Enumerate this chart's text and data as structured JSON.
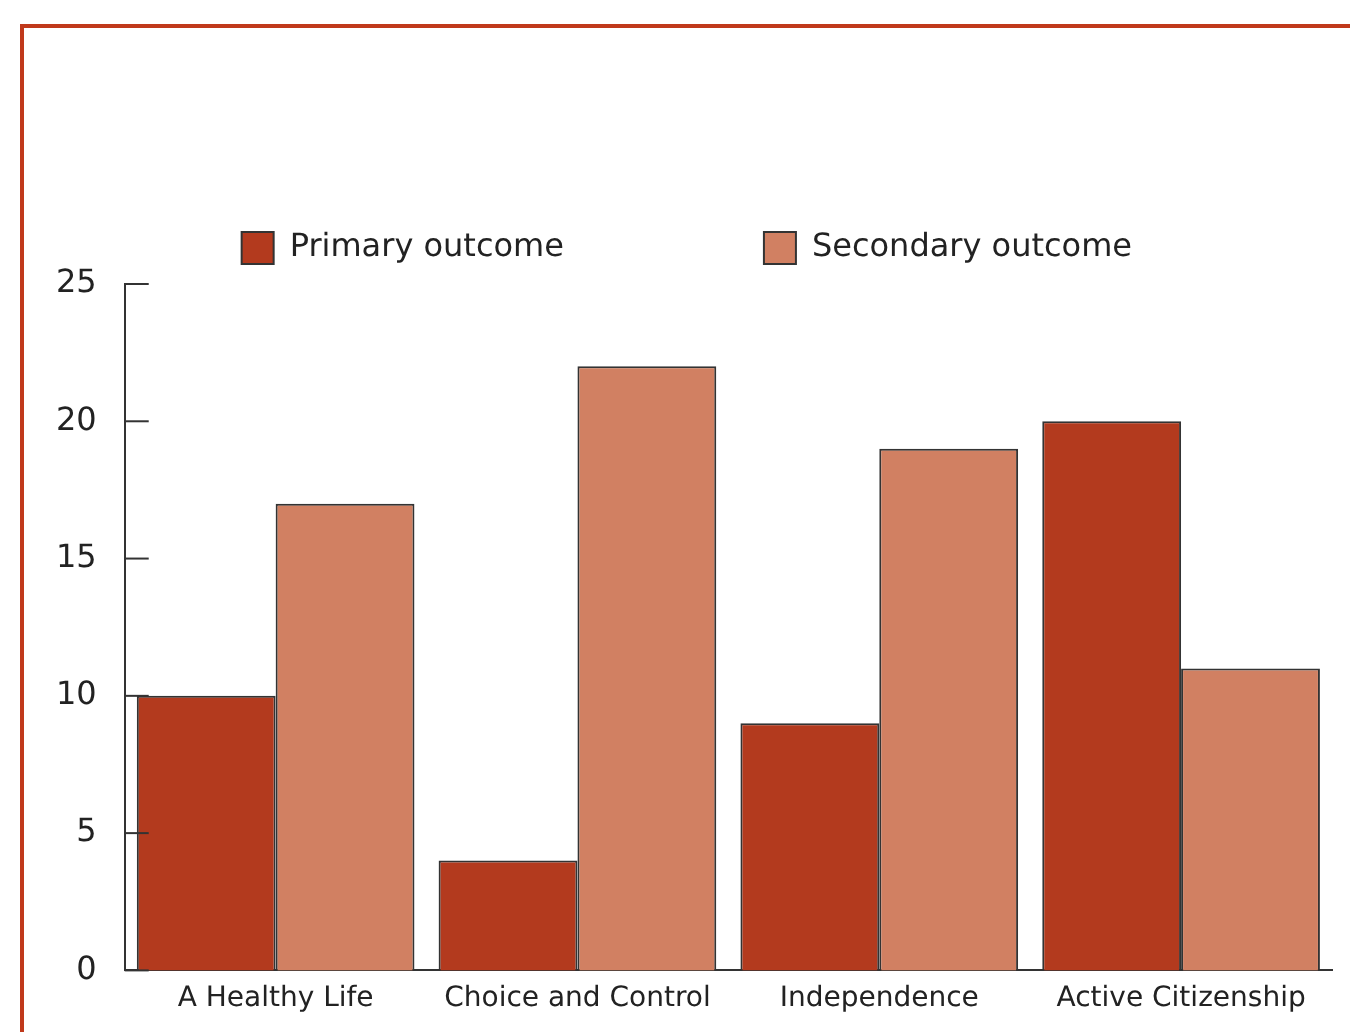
{
  "chart_data": {
    "type": "bar",
    "categories": [
      "A Healthy Life",
      "Choice and Control",
      "Independence",
      "Active Citizenship"
    ],
    "series": [
      {
        "name": "Primary outcome",
        "color": "#b33a1e",
        "values": [
          10,
          4,
          9,
          20
        ]
      },
      {
        "name": "Secondary outcome",
        "color": "#d18062",
        "values": [
          17,
          22,
          19,
          11
        ]
      }
    ],
    "ylim": [
      0,
      25
    ],
    "yticks": [
      0,
      5,
      10,
      15,
      20,
      25
    ],
    "grid": false,
    "legend": "top"
  }
}
